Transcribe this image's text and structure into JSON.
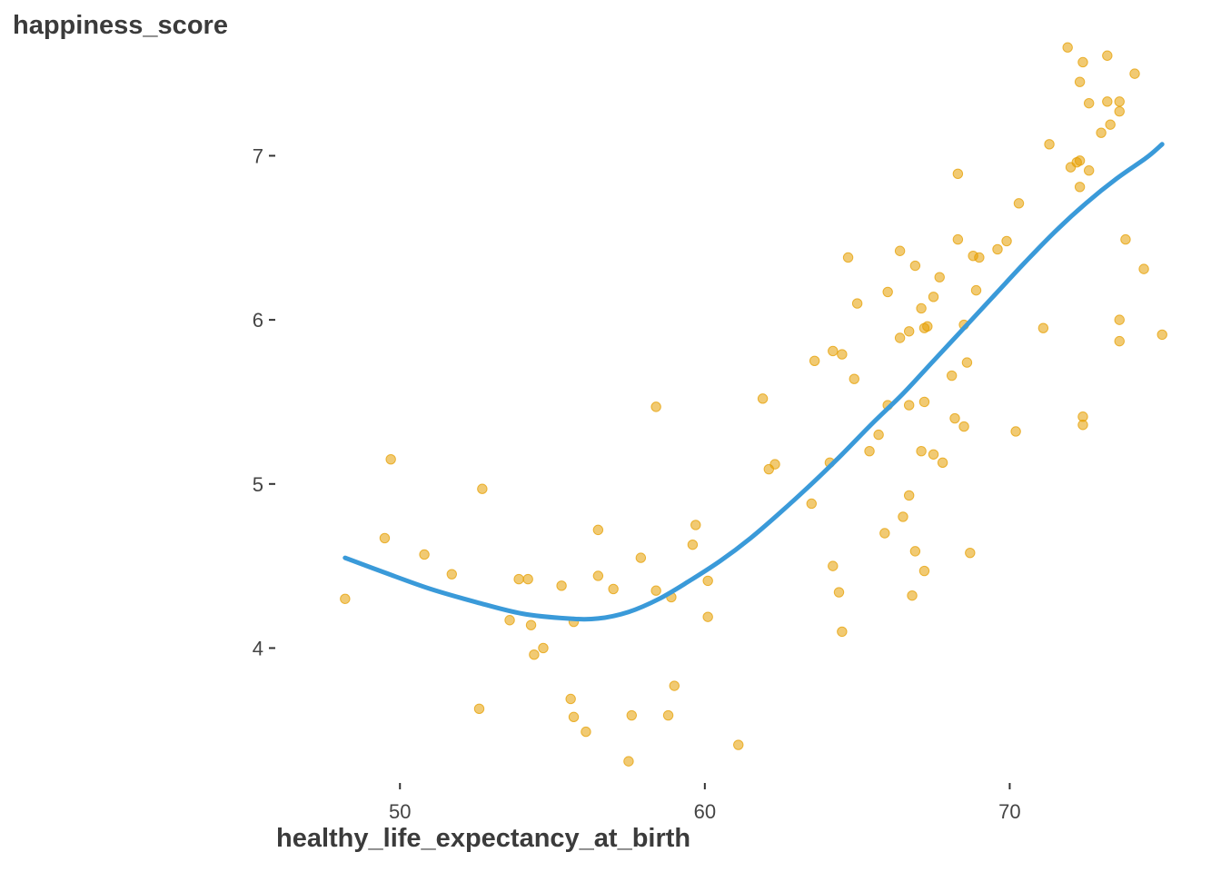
{
  "chart_data": {
    "type": "scatter",
    "xlabel": "healthy_life_expectancy_at_birth",
    "ylabel": "happiness_score",
    "xlim": [
      46,
      75.5
    ],
    "ylim": [
      3.2,
      7.7
    ],
    "x_ticks": [
      50,
      60,
      70
    ],
    "y_ticks": [
      4,
      5,
      6,
      7
    ],
    "grid": false,
    "point_color": "#E69F00",
    "line_color": "#3A9AD9",
    "points": [
      {
        "x": 48.2,
        "y": 4.3
      },
      {
        "x": 49.5,
        "y": 4.67
      },
      {
        "x": 49.7,
        "y": 5.15
      },
      {
        "x": 50.8,
        "y": 4.57
      },
      {
        "x": 51.7,
        "y": 4.45
      },
      {
        "x": 52.6,
        "y": 3.63
      },
      {
        "x": 52.7,
        "y": 4.97
      },
      {
        "x": 53.6,
        "y": 4.17
      },
      {
        "x": 53.9,
        "y": 4.42
      },
      {
        "x": 54.2,
        "y": 4.42
      },
      {
        "x": 54.3,
        "y": 4.14
      },
      {
        "x": 54.4,
        "y": 3.96
      },
      {
        "x": 54.7,
        "y": 4.0
      },
      {
        "x": 55.3,
        "y": 4.38
      },
      {
        "x": 55.6,
        "y": 3.69
      },
      {
        "x": 55.7,
        "y": 3.58
      },
      {
        "x": 55.7,
        "y": 4.16
      },
      {
        "x": 56.1,
        "y": 3.49
      },
      {
        "x": 56.5,
        "y": 4.72
      },
      {
        "x": 56.5,
        "y": 4.44
      },
      {
        "x": 57.0,
        "y": 4.36
      },
      {
        "x": 57.5,
        "y": 3.31
      },
      {
        "x": 57.6,
        "y": 3.59
      },
      {
        "x": 57.9,
        "y": 4.55
      },
      {
        "x": 58.4,
        "y": 5.47
      },
      {
        "x": 58.4,
        "y": 4.35
      },
      {
        "x": 58.8,
        "y": 3.59
      },
      {
        "x": 58.9,
        "y": 4.31
      },
      {
        "x": 59.0,
        "y": 3.77
      },
      {
        "x": 59.6,
        "y": 4.63
      },
      {
        "x": 59.7,
        "y": 4.75
      },
      {
        "x": 60.1,
        "y": 4.19
      },
      {
        "x": 60.1,
        "y": 4.41
      },
      {
        "x": 61.1,
        "y": 3.41
      },
      {
        "x": 61.9,
        "y": 5.52
      },
      {
        "x": 62.1,
        "y": 5.09
      },
      {
        "x": 62.3,
        "y": 5.12
      },
      {
        "x": 63.5,
        "y": 4.88
      },
      {
        "x": 63.6,
        "y": 5.75
      },
      {
        "x": 64.1,
        "y": 5.13
      },
      {
        "x": 64.2,
        "y": 5.81
      },
      {
        "x": 64.2,
        "y": 4.5
      },
      {
        "x": 64.4,
        "y": 4.34
      },
      {
        "x": 64.5,
        "y": 5.79
      },
      {
        "x": 64.5,
        "y": 4.1
      },
      {
        "x": 64.7,
        "y": 6.38
      },
      {
        "x": 64.9,
        "y": 5.64
      },
      {
        "x": 65.0,
        "y": 6.1
      },
      {
        "x": 65.4,
        "y": 5.2
      },
      {
        "x": 65.7,
        "y": 5.3
      },
      {
        "x": 65.9,
        "y": 4.7
      },
      {
        "x": 66.0,
        "y": 6.17
      },
      {
        "x": 66.0,
        "y": 5.48
      },
      {
        "x": 66.4,
        "y": 5.89
      },
      {
        "x": 66.4,
        "y": 6.42
      },
      {
        "x": 66.5,
        "y": 4.8
      },
      {
        "x": 66.7,
        "y": 4.93
      },
      {
        "x": 66.7,
        "y": 5.93
      },
      {
        "x": 66.7,
        "y": 5.48
      },
      {
        "x": 66.8,
        "y": 4.32
      },
      {
        "x": 66.9,
        "y": 4.59
      },
      {
        "x": 66.9,
        "y": 6.33
      },
      {
        "x": 67.1,
        "y": 5.2
      },
      {
        "x": 67.1,
        "y": 6.07
      },
      {
        "x": 67.2,
        "y": 5.95
      },
      {
        "x": 67.2,
        "y": 5.5
      },
      {
        "x": 67.2,
        "y": 4.47
      },
      {
        "x": 67.3,
        "y": 5.96
      },
      {
        "x": 67.5,
        "y": 6.14
      },
      {
        "x": 67.5,
        "y": 5.18
      },
      {
        "x": 67.7,
        "y": 6.26
      },
      {
        "x": 67.8,
        "y": 5.13
      },
      {
        "x": 68.1,
        "y": 5.66
      },
      {
        "x": 68.2,
        "y": 5.4
      },
      {
        "x": 68.3,
        "y": 6.49
      },
      {
        "x": 68.3,
        "y": 6.89
      },
      {
        "x": 68.5,
        "y": 5.35
      },
      {
        "x": 68.5,
        "y": 5.97
      },
      {
        "x": 68.6,
        "y": 5.74
      },
      {
        "x": 68.7,
        "y": 4.58
      },
      {
        "x": 68.8,
        "y": 6.39
      },
      {
        "x": 68.9,
        "y": 6.18
      },
      {
        "x": 69.0,
        "y": 6.38
      },
      {
        "x": 69.6,
        "y": 6.43
      },
      {
        "x": 69.9,
        "y": 6.48
      },
      {
        "x": 70.2,
        "y": 5.32
      },
      {
        "x": 70.3,
        "y": 6.71
      },
      {
        "x": 71.1,
        "y": 5.95
      },
      {
        "x": 71.3,
        "y": 7.07
      },
      {
        "x": 71.9,
        "y": 7.66
      },
      {
        "x": 72.0,
        "y": 6.93
      },
      {
        "x": 72.2,
        "y": 6.96
      },
      {
        "x": 72.3,
        "y": 6.97
      },
      {
        "x": 72.3,
        "y": 7.45
      },
      {
        "x": 72.3,
        "y": 6.81
      },
      {
        "x": 72.4,
        "y": 7.57
      },
      {
        "x": 72.4,
        "y": 5.41
      },
      {
        "x": 72.4,
        "y": 5.36
      },
      {
        "x": 72.6,
        "y": 6.91
      },
      {
        "x": 72.6,
        "y": 7.32
      },
      {
        "x": 73.0,
        "y": 7.14
      },
      {
        "x": 73.2,
        "y": 7.33
      },
      {
        "x": 73.2,
        "y": 7.61
      },
      {
        "x": 73.3,
        "y": 7.19
      },
      {
        "x": 73.6,
        "y": 7.27
      },
      {
        "x": 73.6,
        "y": 7.33
      },
      {
        "x": 73.6,
        "y": 6.0
      },
      {
        "x": 73.6,
        "y": 5.87
      },
      {
        "x": 73.8,
        "y": 6.49
      },
      {
        "x": 74.1,
        "y": 7.5
      },
      {
        "x": 74.4,
        "y": 6.31
      },
      {
        "x": 75.0,
        "y": 5.91
      }
    ],
    "smooth_line": {
      "x": [
        48.2,
        49.5,
        51.0,
        52.5,
        54.0,
        55.5,
        56.5,
        57.5,
        58.5,
        59.5,
        60.5,
        61.5,
        62.5,
        63.5,
        64.5,
        65.5,
        66.5,
        67.5,
        68.5,
        69.5,
        70.5,
        71.5,
        72.5,
        73.5,
        74.5,
        75.0
      ],
      "y": [
        4.55,
        4.46,
        4.36,
        4.28,
        4.21,
        4.18,
        4.18,
        4.22,
        4.3,
        4.41,
        4.53,
        4.67,
        4.83,
        5.0,
        5.18,
        5.37,
        5.55,
        5.75,
        5.95,
        6.15,
        6.35,
        6.54,
        6.71,
        6.86,
        6.99,
        7.07
      ]
    }
  }
}
